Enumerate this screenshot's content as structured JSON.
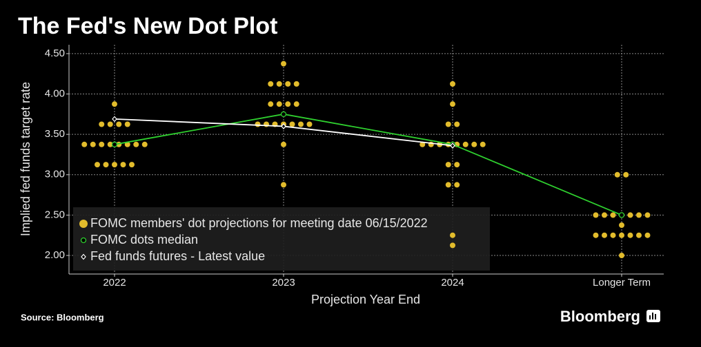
{
  "chart_data": {
    "type": "dot_plot",
    "title": "The Fed's New Dot Plot",
    "x_label": "Projection Year End",
    "y_label": "Implied fed funds target rate",
    "source": "Source: Bloomberg",
    "brand": "Bloomberg",
    "categories": [
      "2022",
      "2023",
      "2024",
      "Longer Term"
    ],
    "ylim": [
      1.77,
      4.61
    ],
    "yticks": [
      {
        "value": 2,
        "label": "2.00"
      },
      {
        "value": 2.5,
        "label": "2.50"
      },
      {
        "value": 3,
        "label": "3.00"
      },
      {
        "value": 3.5,
        "label": "3.50"
      },
      {
        "value": 4,
        "label": "4.00"
      },
      {
        "value": 4.5,
        "label": "4.50"
      }
    ],
    "grid": true,
    "legend": "bottom-left",
    "series": [
      {
        "name": "FOMC members' dot projections for meeting date 06/15/2022",
        "color": "#e2bc2c",
        "marker": "dot",
        "values": [
          [
            3.875,
            3.625,
            3.625,
            3.625,
            3.625,
            3.375,
            3.375,
            3.375,
            3.375,
            3.375,
            3.375,
            3.375,
            3.375,
            3.125,
            3.125,
            3.125,
            3.125,
            3.125
          ],
          [
            4.375,
            4.125,
            4.125,
            4.125,
            4.125,
            3.875,
            3.875,
            3.875,
            3.875,
            3.625,
            3.625,
            3.625,
            3.625,
            3.625,
            3.625,
            3.625,
            3.375,
            2.875
          ],
          [
            4.125,
            3.875,
            3.625,
            3.625,
            3.375,
            3.375,
            3.375,
            3.375,
            3.375,
            3.375,
            3.375,
            3.375,
            3.125,
            3.125,
            2.875,
            2.875,
            2.25,
            2.125
          ],
          [
            3.0,
            3.0,
            2.5,
            2.5,
            2.5,
            2.5,
            2.5,
            2.5,
            2.5,
            2.375,
            2.25,
            2.25,
            2.25,
            2.25,
            2.25,
            2.25,
            2.25,
            2.0
          ]
        ]
      },
      {
        "name": "FOMC dots median",
        "color": "#2fd12f",
        "marker": "circle",
        "values": [
          3.375,
          3.75,
          3.375,
          2.5
        ]
      },
      {
        "name": "Fed funds futures - Latest value",
        "color": "#ffffff",
        "marker": "diamond",
        "values": [
          3.69,
          3.6,
          3.36,
          null
        ]
      }
    ]
  }
}
